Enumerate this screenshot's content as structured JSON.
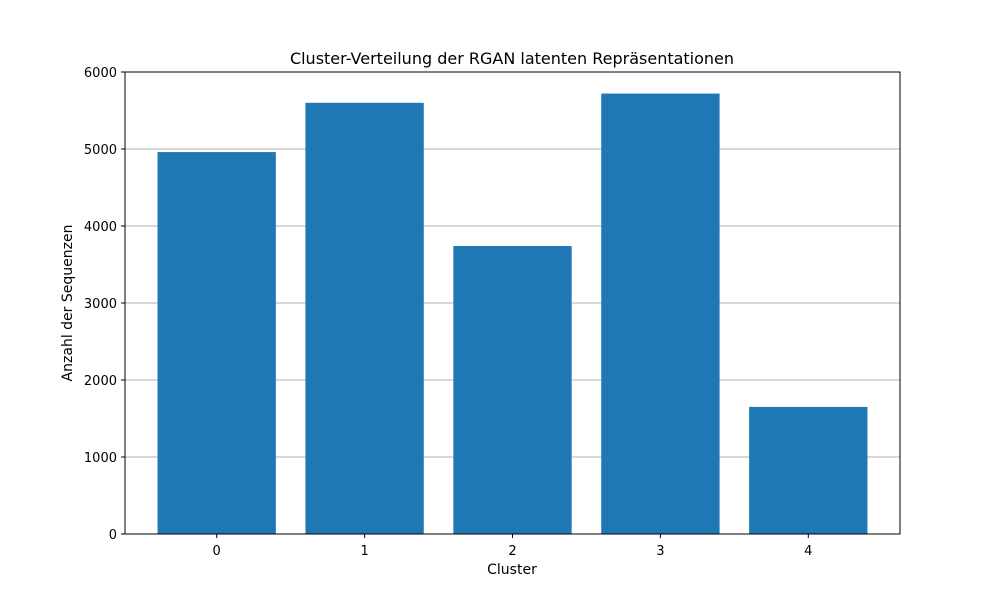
{
  "chart_data": {
    "type": "bar",
    "title": "Cluster-Verteilung der RGAN latenten Repräsentationen",
    "xlabel": "Cluster",
    "ylabel": "Anzahl der Sequenzen",
    "categories": [
      "0",
      "1",
      "2",
      "3",
      "4"
    ],
    "values": [
      4960,
      5600,
      3740,
      5720,
      1650
    ],
    "ylim": [
      0,
      6000
    ],
    "yticks": [
      0,
      1000,
      2000,
      3000,
      4000,
      5000,
      6000
    ],
    "grid": "y",
    "legend": "none",
    "bar_color": "#1f77b4",
    "grid_color": "#b0b0b0"
  }
}
